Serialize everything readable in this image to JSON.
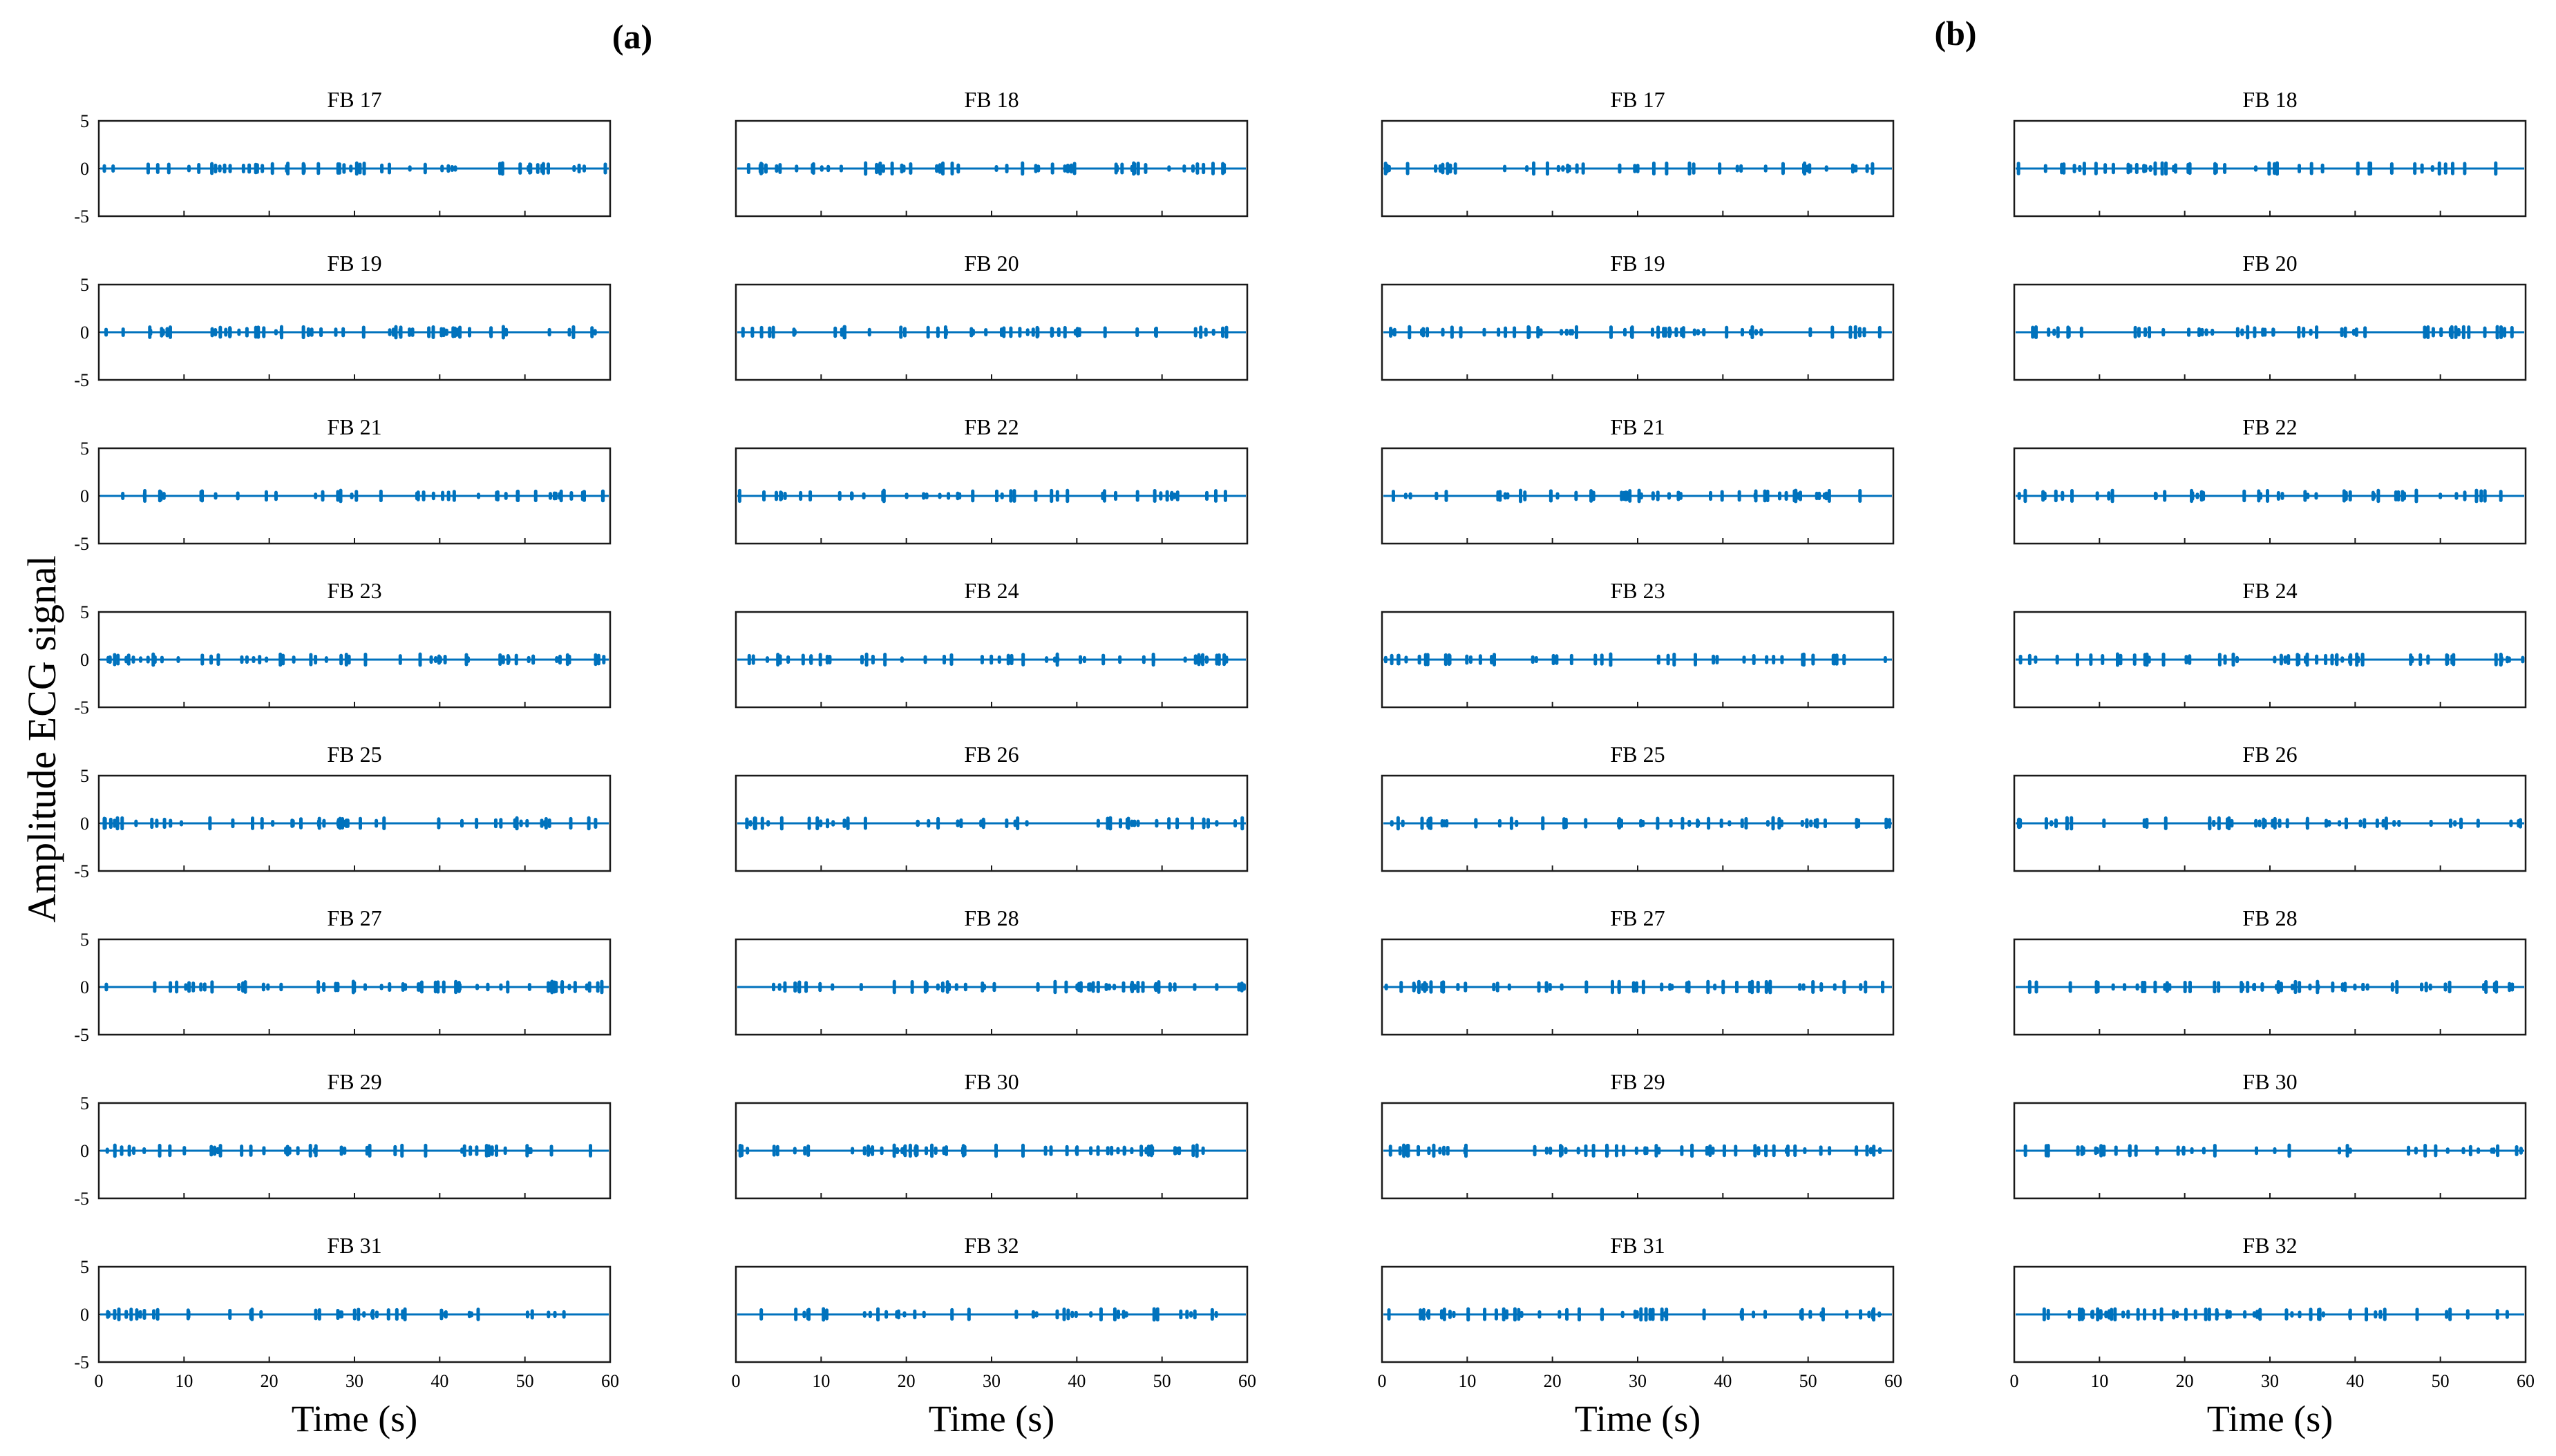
{
  "figure": {
    "panel_labels": [
      "(a)",
      "(b)"
    ],
    "ylabel": "Amplitude ECG signal",
    "xlabel": "Time (s)",
    "signal_color": "#0072BD"
  },
  "chart_data": {
    "type": "line",
    "description_note": "Grid of ECG frequency-band subplots; each band shows a near-zero signal with small spikes.",
    "x_ticks": [
      0,
      10,
      20,
      30,
      40,
      50,
      60
    ],
    "y_ticks": [
      5,
      0,
      -5
    ],
    "xlim": [
      0,
      60
    ],
    "ylim": [
      -5,
      5
    ],
    "xlabel": "Time (s)",
    "ylabel": "Amplitude ECG signal",
    "panels": [
      {
        "label": "(a)",
        "columns": [
          [
            "FB 17",
            "FB 19",
            "FB 21",
            "FB 23",
            "FB 25",
            "FB 27",
            "FB 29",
            "FB 31"
          ],
          [
            "FB 18",
            "FB 20",
            "FB 22",
            "FB 24",
            "FB 26",
            "FB 28",
            "FB 30",
            "FB 32"
          ]
        ]
      },
      {
        "label": "(b)",
        "columns": [
          [
            "FB 17",
            "FB 19",
            "FB 21",
            "FB 23",
            "FB 25",
            "FB 27",
            "FB 29",
            "FB 31"
          ],
          [
            "FB 18",
            "FB 20",
            "FB 22",
            "FB 24",
            "FB 26",
            "FB 28",
            "FB 30",
            "FB 32"
          ]
        ]
      }
    ],
    "signal_level": 0
  }
}
